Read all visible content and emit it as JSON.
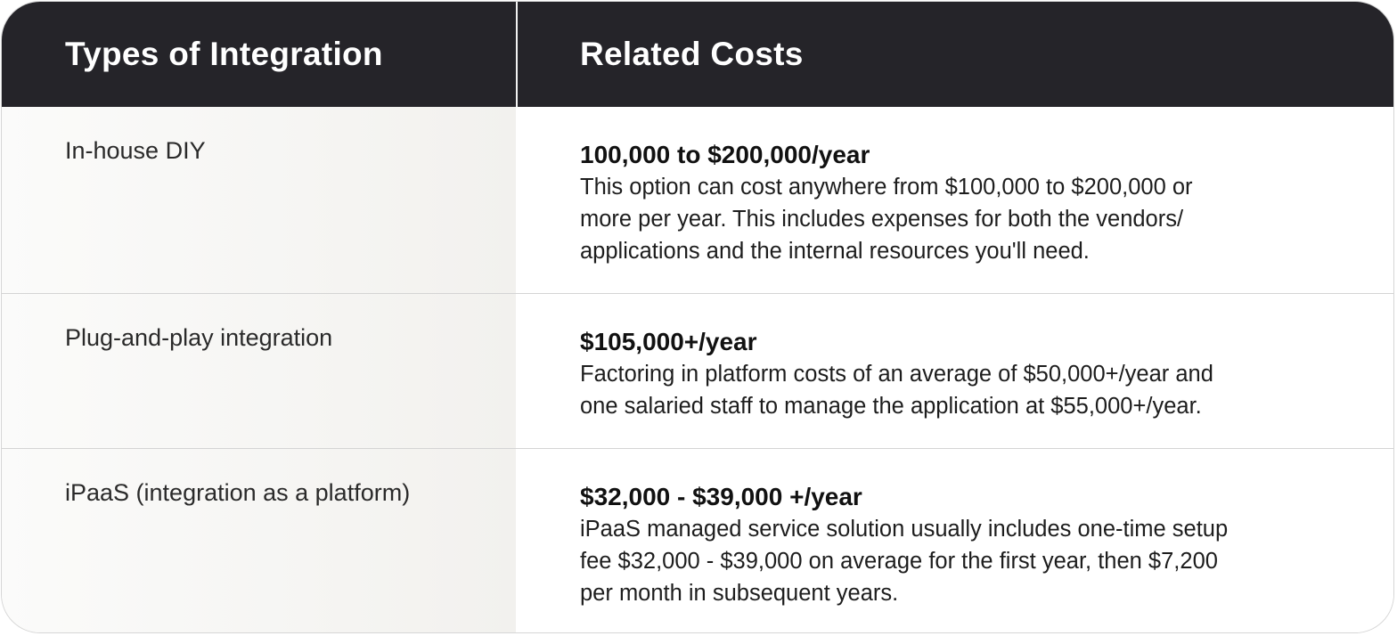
{
  "table": {
    "headers": {
      "type": "Types of Integration",
      "cost": "Related Costs"
    },
    "rows": [
      {
        "type": "In-house DIY",
        "cost_title": "100,000 to $200,000/year",
        "cost_desc_lines": [
          "This option can cost anywhere from $100,000 to $200,000 or",
          "more per year. This includes expenses for both the vendors/",
          "applications and the internal resources you'll need."
        ]
      },
      {
        "type": "Plug-and-play integration",
        "cost_title": "$105,000+/year",
        "cost_desc_lines": [
          "Factoring in platform costs of an average of $50,000+/year and",
          "one salaried staff to manage the application at $55,000+/year."
        ]
      },
      {
        "type": "iPaaS (integration as a platform)",
        "cost_title": "$32,000 - $39,000 +/year",
        "cost_desc_lines": [
          "iPaaS managed service solution usually includes one-time setup",
          "fee $32,000 - $39,000 on average for the first year, then $7,200",
          "per month in subsequent years."
        ]
      }
    ]
  }
}
